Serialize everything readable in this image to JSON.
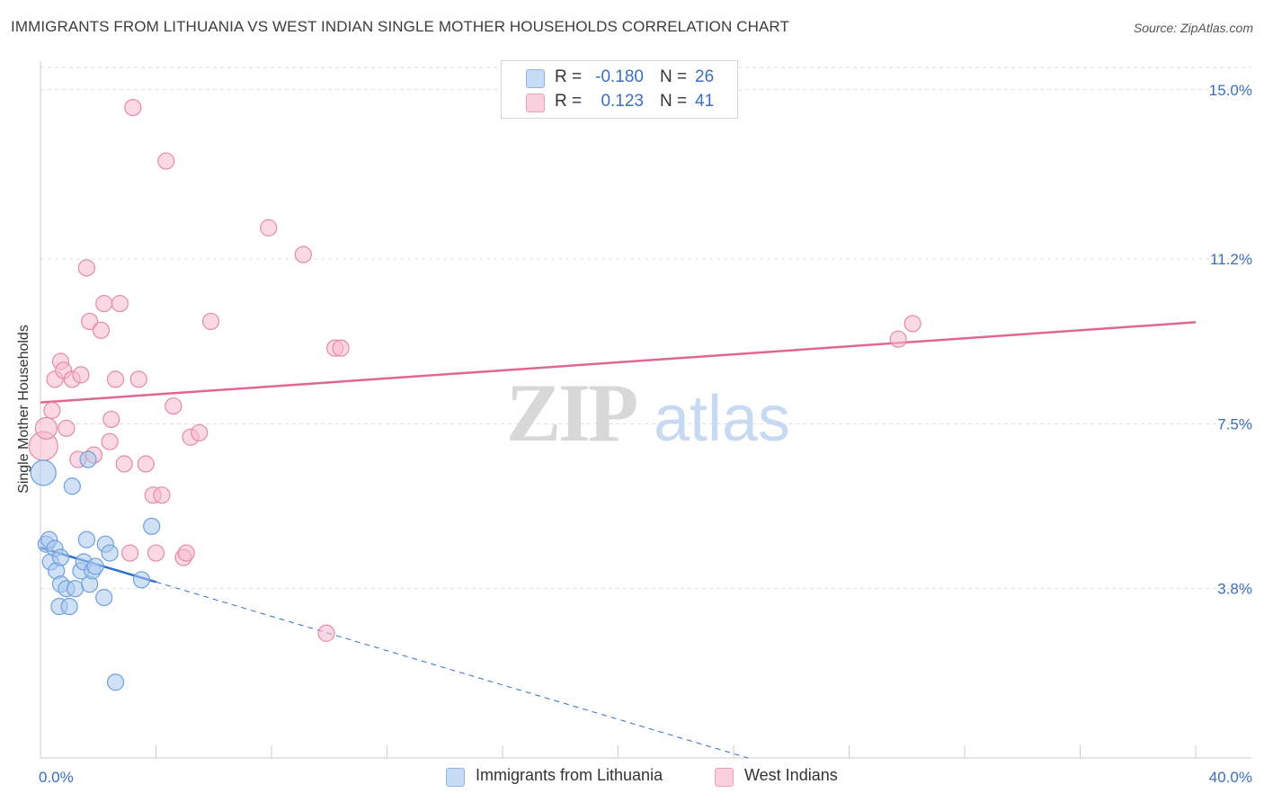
{
  "header": {
    "title": "IMMIGRANTS FROM LITHUANIA VS WEST INDIAN SINGLE MOTHER HOUSEHOLDS CORRELATION CHART",
    "source": "Source: ZipAtlas.com"
  },
  "watermark": {
    "zip": "ZIP",
    "atlas": "atlas"
  },
  "legend_top": {
    "rows": [
      {
        "r_label": "R =",
        "r_value": "-0.180",
        "n_label": "N =",
        "n_value": "26"
      },
      {
        "r_label": "R =",
        "r_value": "0.123",
        "n_label": "N =",
        "n_value": "41"
      }
    ]
  },
  "legend_bottom": {
    "series1": "Immigrants from Lithuania",
    "series2": "West Indians"
  },
  "colors": {
    "blue_fill": "#a9c8ef",
    "blue_stroke": "#6f9fdc",
    "blue_line": "#2f6fd0",
    "pink_fill": "#f6b9cd",
    "pink_stroke": "#e48aa8",
    "pink_line": "#e0678f",
    "axis_text": "#3a6fc0",
    "grid": "#dddddd"
  },
  "chart_data": {
    "type": "scatter",
    "title": "IMMIGRANTS FROM LITHUANIA VS WEST INDIAN SINGLE MOTHER HOUSEHOLDS CORRELATION CHART",
    "xlabel": "",
    "ylabel": "Single Mother Households",
    "xlim": [
      0,
      40
    ],
    "ylim": [
      0,
      15.5
    ],
    "x_tick_labels": [
      {
        "value": 0,
        "label": "0.0%"
      },
      {
        "value": 40,
        "label": "40.0%"
      }
    ],
    "y_ticks": [
      {
        "value": 15.0,
        "label": "15.0%"
      },
      {
        "value": 11.2,
        "label": "11.2%"
      },
      {
        "value": 7.5,
        "label": "7.5%"
      },
      {
        "value": 3.8,
        "label": "3.8%"
      }
    ],
    "series": [
      {
        "name": "Immigrants from Lithuania",
        "color": "blue",
        "r": -0.18,
        "n": 26,
        "points": [
          [
            0.1,
            6.4,
            14
          ],
          [
            0.2,
            4.8,
            9
          ],
          [
            0.3,
            4.9,
            9
          ],
          [
            0.35,
            4.4,
            9
          ],
          [
            0.5,
            4.7,
            9
          ],
          [
            0.55,
            4.2,
            9
          ],
          [
            0.7,
            4.5,
            9
          ],
          [
            0.7,
            3.9,
            9
          ],
          [
            0.65,
            3.4,
            9
          ],
          [
            0.9,
            3.8,
            9
          ],
          [
            1.0,
            3.4,
            9
          ],
          [
            1.1,
            6.1,
            9
          ],
          [
            1.2,
            3.8,
            9
          ],
          [
            1.4,
            4.2,
            9
          ],
          [
            1.5,
            4.4,
            9
          ],
          [
            1.6,
            4.9,
            9
          ],
          [
            1.65,
            6.7,
            9
          ],
          [
            1.7,
            3.9,
            9
          ],
          [
            1.8,
            4.2,
            9
          ],
          [
            1.9,
            4.3,
            9
          ],
          [
            2.2,
            3.6,
            9
          ],
          [
            2.25,
            4.8,
            9
          ],
          [
            2.4,
            4.6,
            9
          ],
          [
            2.6,
            1.7,
            9
          ],
          [
            3.5,
            4.0,
            9
          ],
          [
            3.85,
            5.2,
            9
          ]
        ],
        "trend": {
          "x": [
            0,
            4.0
          ],
          "y": [
            4.72,
            3.95
          ],
          "dashed_extension": {
            "x": [
              4.0,
              24.5
            ],
            "y": [
              3.95,
              0.0
            ]
          }
        }
      },
      {
        "name": "West Indians",
        "color": "pink",
        "r": 0.123,
        "n": 41,
        "points": [
          [
            0.1,
            7.0,
            16
          ],
          [
            0.2,
            7.4,
            12
          ],
          [
            0.4,
            7.8,
            9
          ],
          [
            0.5,
            8.5,
            9
          ],
          [
            0.7,
            8.9,
            9
          ],
          [
            0.8,
            8.7,
            9
          ],
          [
            0.9,
            7.4,
            9
          ],
          [
            1.1,
            8.5,
            9
          ],
          [
            1.3,
            6.7,
            9
          ],
          [
            1.4,
            8.6,
            9
          ],
          [
            1.6,
            11.0,
            9
          ],
          [
            1.7,
            9.8,
            9
          ],
          [
            1.85,
            6.8,
            9
          ],
          [
            2.1,
            9.6,
            9
          ],
          [
            2.2,
            10.2,
            9
          ],
          [
            2.4,
            7.1,
            9
          ],
          [
            2.45,
            7.6,
            9
          ],
          [
            2.6,
            8.5,
            9
          ],
          [
            2.75,
            10.2,
            9
          ],
          [
            2.9,
            6.6,
            9
          ],
          [
            3.1,
            4.6,
            9
          ],
          [
            3.2,
            14.6,
            9
          ],
          [
            3.4,
            8.5,
            9
          ],
          [
            3.65,
            6.6,
            9
          ],
          [
            3.9,
            5.9,
            9
          ],
          [
            4.0,
            4.6,
            9
          ],
          [
            4.2,
            5.9,
            9
          ],
          [
            4.35,
            13.4,
            9
          ],
          [
            4.6,
            7.9,
            9
          ],
          [
            4.95,
            4.5,
            9
          ],
          [
            5.05,
            4.6,
            9
          ],
          [
            5.2,
            7.2,
            9
          ],
          [
            5.5,
            7.3,
            9
          ],
          [
            5.9,
            9.8,
            9
          ],
          [
            7.9,
            11.9,
            9
          ],
          [
            9.1,
            11.3,
            9
          ],
          [
            9.9,
            2.8,
            9
          ],
          [
            10.2,
            9.2,
            9
          ],
          [
            10.4,
            9.2,
            9
          ],
          [
            29.7,
            9.4,
            9
          ],
          [
            30.2,
            9.75,
            9
          ]
        ],
        "trend": {
          "x": [
            0,
            40
          ],
          "y": [
            7.98,
            9.78
          ]
        }
      }
    ]
  }
}
